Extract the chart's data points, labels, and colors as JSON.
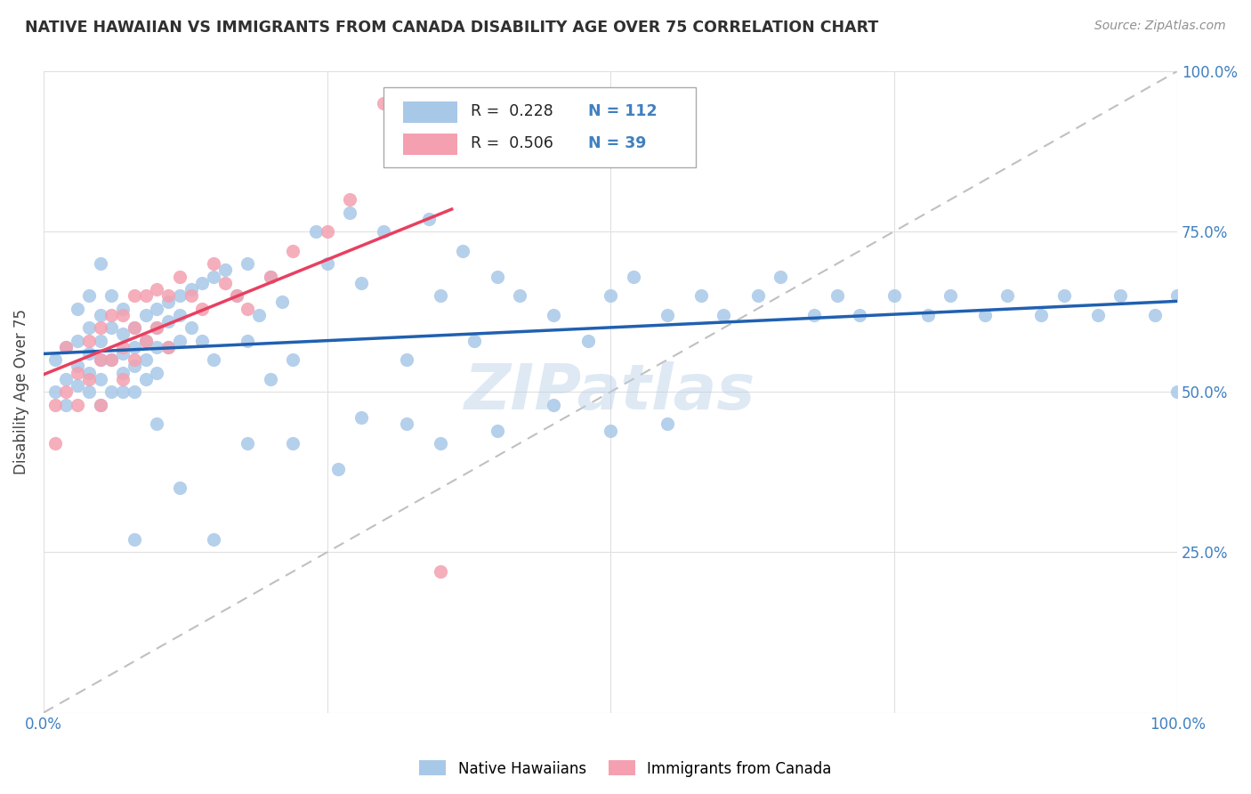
{
  "title": "NATIVE HAWAIIAN VS IMMIGRANTS FROM CANADA DISABILITY AGE OVER 75 CORRELATION CHART",
  "source": "Source: ZipAtlas.com",
  "ylabel": "Disability Age Over 75",
  "legend_label1": "Native Hawaiians",
  "legend_label2": "Immigrants from Canada",
  "legend_r1": "0.228",
  "legend_n1": "112",
  "legend_r2": "0.506",
  "legend_n2": "39",
  "blue_color": "#a8c8e8",
  "pink_color": "#f4a0b0",
  "blue_line_color": "#2060b0",
  "pink_line_color": "#e84060",
  "diag_color": "#c0c0c0",
  "bg_color": "#ffffff",
  "grid_color": "#e0e0e0",
  "watermark": "ZIPatlas",
  "tick_color": "#4080c0",
  "title_color": "#303030",
  "source_color": "#909090",
  "blue_x": [
    0.01,
    0.01,
    0.02,
    0.02,
    0.02,
    0.03,
    0.03,
    0.03,
    0.03,
    0.04,
    0.04,
    0.04,
    0.04,
    0.04,
    0.05,
    0.05,
    0.05,
    0.05,
    0.05,
    0.05,
    0.06,
    0.06,
    0.06,
    0.06,
    0.07,
    0.07,
    0.07,
    0.07,
    0.07,
    0.08,
    0.08,
    0.08,
    0.08,
    0.09,
    0.09,
    0.09,
    0.09,
    0.1,
    0.1,
    0.1,
    0.1,
    0.11,
    0.11,
    0.11,
    0.12,
    0.12,
    0.12,
    0.13,
    0.13,
    0.14,
    0.14,
    0.15,
    0.15,
    0.16,
    0.17,
    0.18,
    0.18,
    0.19,
    0.2,
    0.21,
    0.22,
    0.24,
    0.25,
    0.27,
    0.28,
    0.3,
    0.32,
    0.34,
    0.35,
    0.37,
    0.38,
    0.4,
    0.42,
    0.45,
    0.48,
    0.5,
    0.52,
    0.55,
    0.58,
    0.6,
    0.63,
    0.65,
    0.68,
    0.7,
    0.72,
    0.75,
    0.78,
    0.8,
    0.83,
    0.85,
    0.88,
    0.9,
    0.93,
    0.95,
    0.98,
    1.0,
    1.0,
    0.08,
    0.1,
    0.12,
    0.15,
    0.18,
    0.2,
    0.22,
    0.26,
    0.28,
    0.32,
    0.35,
    0.4,
    0.45,
    0.5,
    0.55
  ],
  "blue_y": [
    0.55,
    0.5,
    0.57,
    0.52,
    0.48,
    0.58,
    0.54,
    0.51,
    0.63,
    0.6,
    0.56,
    0.53,
    0.5,
    0.65,
    0.62,
    0.58,
    0.55,
    0.52,
    0.48,
    0.7,
    0.65,
    0.6,
    0.55,
    0.5,
    0.63,
    0.59,
    0.56,
    0.53,
    0.5,
    0.6,
    0.57,
    0.54,
    0.5,
    0.62,
    0.58,
    0.55,
    0.52,
    0.63,
    0.6,
    0.57,
    0.53,
    0.64,
    0.61,
    0.57,
    0.65,
    0.62,
    0.58,
    0.66,
    0.6,
    0.67,
    0.58,
    0.68,
    0.55,
    0.69,
    0.65,
    0.7,
    0.58,
    0.62,
    0.68,
    0.64,
    0.55,
    0.75,
    0.7,
    0.78,
    0.67,
    0.75,
    0.55,
    0.77,
    0.65,
    0.72,
    0.58,
    0.68,
    0.65,
    0.62,
    0.58,
    0.65,
    0.68,
    0.62,
    0.65,
    0.62,
    0.65,
    0.68,
    0.62,
    0.65,
    0.62,
    0.65,
    0.62,
    0.65,
    0.62,
    0.65,
    0.62,
    0.65,
    0.62,
    0.65,
    0.62,
    0.65,
    0.5,
    0.27,
    0.45,
    0.35,
    0.27,
    0.42,
    0.52,
    0.42,
    0.38,
    0.46,
    0.45,
    0.42,
    0.44,
    0.48,
    0.44,
    0.45
  ],
  "pink_x": [
    0.01,
    0.01,
    0.02,
    0.02,
    0.03,
    0.03,
    0.04,
    0.04,
    0.05,
    0.05,
    0.05,
    0.06,
    0.06,
    0.07,
    0.07,
    0.07,
    0.08,
    0.08,
    0.08,
    0.09,
    0.09,
    0.1,
    0.1,
    0.11,
    0.11,
    0.12,
    0.13,
    0.14,
    0.15,
    0.16,
    0.17,
    0.18,
    0.2,
    0.22,
    0.25,
    0.27,
    0.3,
    0.34,
    0.35
  ],
  "pink_y": [
    0.48,
    0.42,
    0.57,
    0.5,
    0.53,
    0.48,
    0.58,
    0.52,
    0.6,
    0.55,
    0.48,
    0.62,
    0.55,
    0.62,
    0.57,
    0.52,
    0.65,
    0.6,
    0.55,
    0.65,
    0.58,
    0.66,
    0.6,
    0.65,
    0.57,
    0.68,
    0.65,
    0.63,
    0.7,
    0.67,
    0.65,
    0.63,
    0.68,
    0.72,
    0.75,
    0.8,
    0.95,
    0.95,
    0.22
  ]
}
